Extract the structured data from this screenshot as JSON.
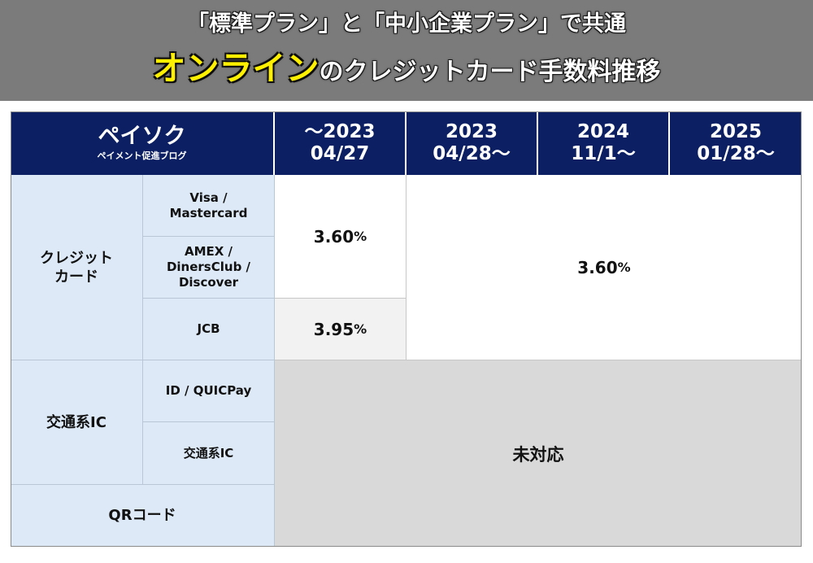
{
  "banner": {
    "line1": "「標準プラン」と「中小企業プラン」で共通",
    "line2_accent": "オンライン",
    "line2_rest": "のクレジットカード手数料推移"
  },
  "table": {
    "brand": {
      "title": "ペイソク",
      "subtitle": "ペイメント促進ブログ"
    },
    "columns": [
      {
        "line1": "〜2023",
        "line2": "04/27"
      },
      {
        "line1": "2023",
        "line2": "04/28〜"
      },
      {
        "line1": "2024",
        "line2": "11/1〜"
      },
      {
        "line1": "2025",
        "line2": "01/28〜"
      }
    ],
    "categories": {
      "credit": {
        "line1": "クレジット",
        "line2": "カード"
      },
      "transit": "交通系IC",
      "qr": "QRコード"
    },
    "subcategories": {
      "visa": {
        "line1": "Visa /",
        "line2": "Mastercard"
      },
      "amex": {
        "line1": "AMEX /",
        "line2": "DinersClub /",
        "line3": "Discover"
      },
      "jcb": "JCB",
      "id_quicpay": "ID / QUICPay",
      "transit_ic": "交通系IC"
    },
    "values": {
      "visa_amex_before": "3.60",
      "jcb_before": "3.95",
      "all_after": "3.60",
      "percent_sign": "%",
      "not_supported": "未対応"
    }
  }
}
